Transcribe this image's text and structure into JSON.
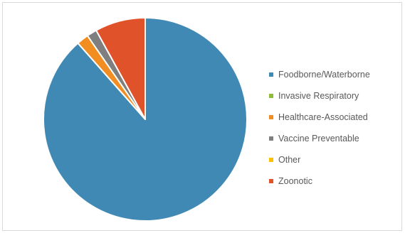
{
  "chart_data": {
    "type": "pie",
    "title": "",
    "categories": [
      "Foodborne/Waterborne",
      "Invasive Respiratory",
      "Healthcare-Associated",
      "Vaccine Preventable",
      "Other",
      "Zoonotic"
    ],
    "values": [
      88.5,
      0.0,
      1.9,
      1.6,
      0.0,
      8.0
    ],
    "colors": [
      "#4189b5",
      "#8fbc3b",
      "#f28d22",
      "#7f7f7f",
      "#ffc000",
      "#e0522a"
    ],
    "legend_position": "right",
    "start_angle_deg": 0,
    "direction": "clockwise"
  }
}
